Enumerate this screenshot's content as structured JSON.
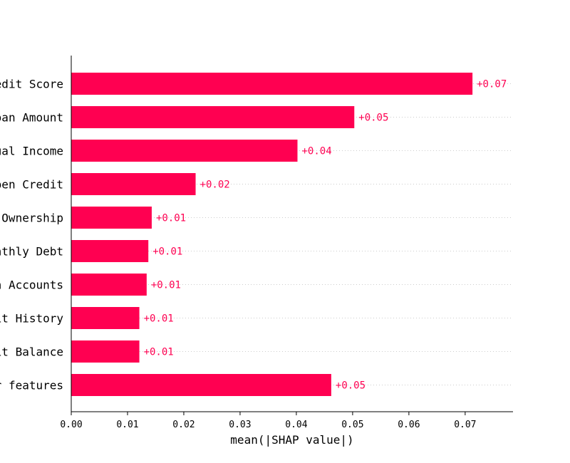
{
  "chart_data": {
    "type": "bar",
    "orientation": "horizontal",
    "title": "",
    "xlabel": "mean(|SHAP value|)",
    "ylabel": "",
    "xlim": [
      0,
      0.0785
    ],
    "x_ticks": [
      0.0,
      0.01,
      0.02,
      0.03,
      0.04,
      0.05,
      0.06,
      0.07
    ],
    "x_tick_labels": [
      "0.00",
      "0.01",
      "0.02",
      "0.03",
      "0.04",
      "0.05",
      "0.06",
      "0.07"
    ],
    "categories": [
      "edit Score",
      "oan Amount",
      "ual Income",
      "pen Credit",
      " Ownership",
      "nthly Debt",
      "n Accounts",
      "it History",
      "it Balance",
      "r features"
    ],
    "values": [
      0.0713,
      0.0503,
      0.0402,
      0.0221,
      0.0143,
      0.0137,
      0.0134,
      0.0121,
      0.0121,
      0.0462
    ],
    "data_labels": [
      "+0.07",
      "+0.05",
      "+0.04",
      "+0.02",
      "+0.01",
      "+0.01",
      "+0.01",
      "+0.01",
      "+0.01",
      "+0.05"
    ],
    "bar_color": "#ff0051",
    "label_color": "#ff0051",
    "grid": "dotted row guides",
    "legend": "none"
  }
}
